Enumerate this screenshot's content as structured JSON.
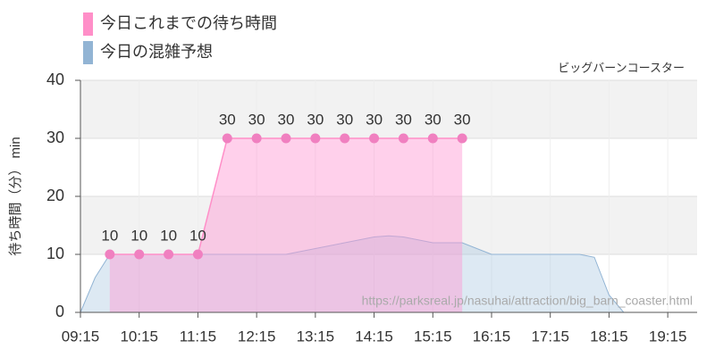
{
  "chart_data": {
    "type": "area",
    "subtitle": "ビッグバーンコースター",
    "y_label": "待ち時間（分） min",
    "annotation": "https://parksreal.jp/nasuhai/attraction/big_barn_coaster.html",
    "xlim": [
      "09:15",
      "19:45"
    ],
    "xticks": [
      "09:15",
      "10:15",
      "11:15",
      "12:15",
      "13:15",
      "14:15",
      "15:15",
      "16:15",
      "17:15",
      "18:15",
      "19:15"
    ],
    "ylim": [
      0,
      40
    ],
    "yticks": [
      0,
      10,
      20,
      30,
      40
    ],
    "grid": true,
    "series": [
      {
        "name": "今日これまでの待ち時間",
        "color": "#ff8fc8",
        "x": [
          "09:45",
          "10:15",
          "10:45",
          "11:15",
          "11:45",
          "12:15",
          "12:45",
          "13:15",
          "13:45",
          "14:15",
          "14:45",
          "15:15",
          "15:45"
        ],
        "values": [
          10,
          10,
          10,
          10,
          30,
          30,
          30,
          30,
          30,
          30,
          30,
          30,
          30
        ]
      },
      {
        "name": "今日の混雑予想",
        "color": "#92b4d4",
        "x": [
          "09:15",
          "09:30",
          "09:45",
          "10:15",
          "10:45",
          "11:15",
          "11:45",
          "12:15",
          "12:45",
          "13:15",
          "13:45",
          "14:15",
          "14:30",
          "14:45",
          "15:15",
          "15:45",
          "16:15",
          "16:45",
          "17:15",
          "17:45",
          "18:00",
          "18:15",
          "18:30",
          "19:45"
        ],
        "values": [
          0,
          6,
          10,
          10,
          10,
          10,
          10,
          10,
          10,
          11,
          12,
          13,
          13.2,
          13,
          12,
          12,
          10,
          10,
          10,
          10,
          9.5,
          3,
          0,
          0
        ]
      }
    ]
  }
}
